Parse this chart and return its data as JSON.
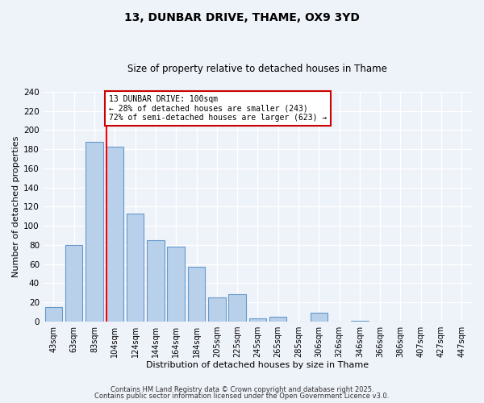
{
  "title": "13, DUNBAR DRIVE, THAME, OX9 3YD",
  "subtitle": "Size of property relative to detached houses in Thame",
  "xlabel": "Distribution of detached houses by size in Thame",
  "ylabel": "Number of detached properties",
  "bar_labels": [
    "43sqm",
    "63sqm",
    "83sqm",
    "104sqm",
    "124sqm",
    "144sqm",
    "164sqm",
    "184sqm",
    "205sqm",
    "225sqm",
    "245sqm",
    "265sqm",
    "285sqm",
    "306sqm",
    "326sqm",
    "346sqm",
    "366sqm",
    "386sqm",
    "407sqm",
    "427sqm",
    "447sqm"
  ],
  "bar_values": [
    15,
    80,
    188,
    183,
    113,
    85,
    78,
    57,
    25,
    29,
    3,
    5,
    0,
    9,
    0,
    1,
    0,
    0,
    0,
    0,
    0
  ],
  "bar_color": "#b8d0ea",
  "bar_edge_color": "#6699cc",
  "red_line_index": 3,
  "red_line_label": "13 DUNBAR DRIVE: 100sqm",
  "annotation_line2": "← 28% of detached houses are smaller (243)",
  "annotation_line3": "72% of semi-detached houses are larger (623) →",
  "annotation_box_color": "#ffffff",
  "annotation_border_color": "#cc0000",
  "ylim": [
    0,
    240
  ],
  "yticks": [
    0,
    20,
    40,
    60,
    80,
    100,
    120,
    140,
    160,
    180,
    200,
    220,
    240
  ],
  "bg_color": "#eef2f9",
  "grid_color": "#ffffff",
  "footer1": "Contains HM Land Registry data © Crown copyright and database right 2025.",
  "footer2": "Contains public sector information licensed under the Open Government Licence v3.0."
}
